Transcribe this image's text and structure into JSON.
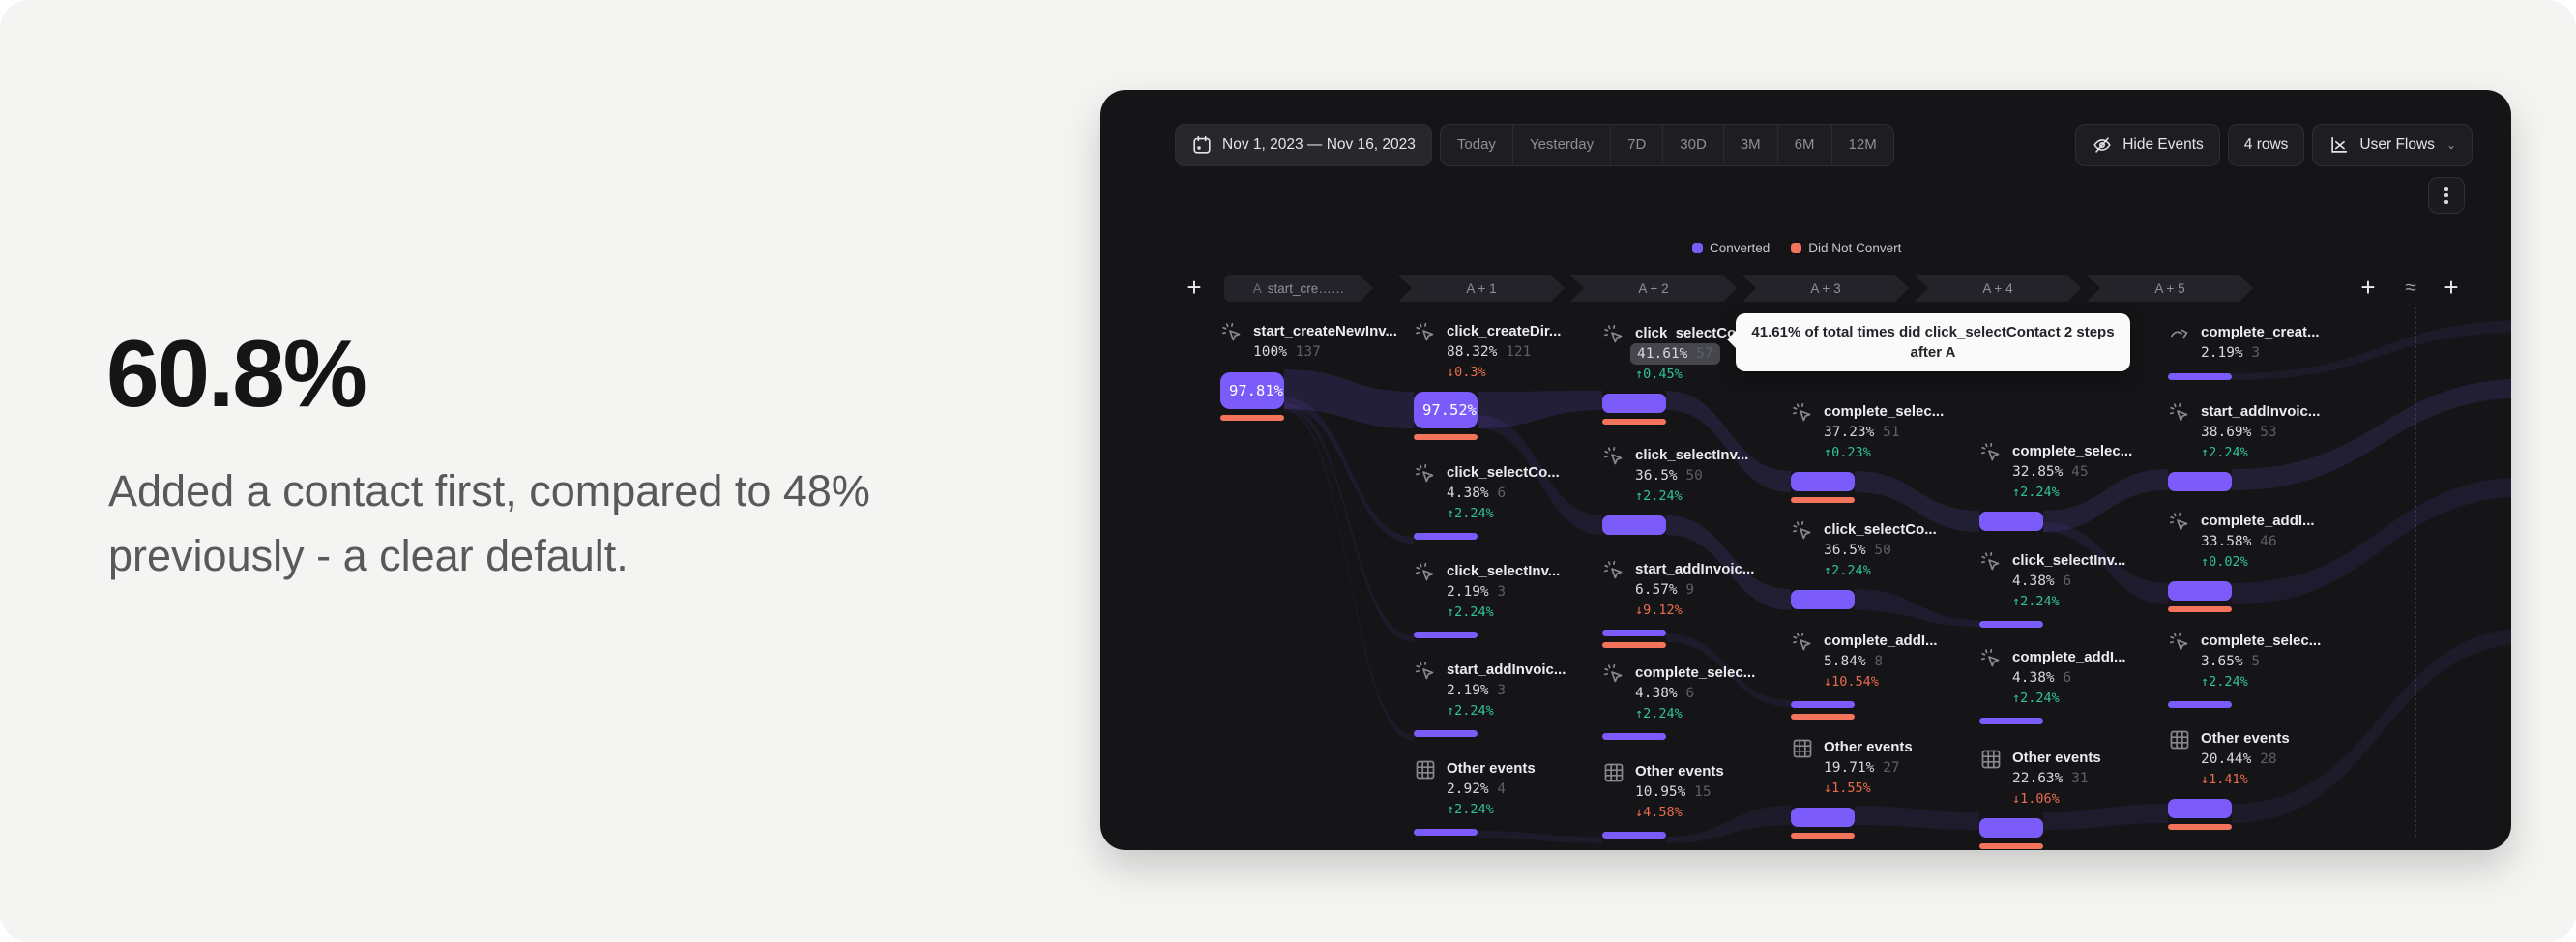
{
  "stat": {
    "headline": "60.8%",
    "subtext_line1": "Added a contact first, compared to 48%",
    "subtext_line2": "previously - a clear default."
  },
  "toolbar": {
    "date_range": "Nov 1, 2023 — Nov 16, 2023",
    "presets": [
      "Today",
      "Yesterday",
      "7D",
      "30D",
      "3M",
      "6M",
      "12M"
    ],
    "hide_events_label": "Hide Events",
    "rows_label": "4 rows",
    "view_label": "User Flows"
  },
  "legend": {
    "converted": "Converted",
    "did_not_convert": "Did Not Convert"
  },
  "colors": {
    "converted": "#7B5BF9",
    "did_not_convert": "#F4735B",
    "delta_up": "#30C29C",
    "delta_down": "#E96B4D",
    "panel_bg": "#151518"
  },
  "tooltip": {
    "text": "41.61% of total times did click_selectContact 2 steps after A"
  },
  "headers": [
    {
      "prefix": "A",
      "label": "start_cre……"
    },
    {
      "label": "A + 1"
    },
    {
      "label": "A + 2"
    },
    {
      "label": "A + 3"
    },
    {
      "label": "A + 4"
    },
    {
      "label": "A + 5"
    }
  ],
  "flows": {
    "columns": [
      {
        "step": "A",
        "nodes": [
          {
            "icon": "cursor-click",
            "name": "start_createNewInv...",
            "pct": "100%",
            "count": "137",
            "purple": "box-label",
            "box_label": "97.81%",
            "orange": true
          }
        ]
      },
      {
        "step": "A + 1",
        "nodes": [
          {
            "icon": "cursor-click",
            "name": "click_createDir...",
            "pct": "88.32%",
            "count": "121",
            "delta": "0.3%",
            "delta_dir": "down",
            "purple": "box-label",
            "box_label": "97.52%",
            "orange": true
          },
          {
            "icon": "cursor-click",
            "name": "click_selectCo...",
            "pct": "4.38%",
            "count": "6",
            "delta": "2.24%",
            "delta_dir": "up",
            "purple": "bar"
          },
          {
            "icon": "cursor-click",
            "name": "click_selectInv...",
            "pct": "2.19%",
            "count": "3",
            "delta": "2.24%",
            "delta_dir": "up",
            "purple": "bar"
          },
          {
            "icon": "cursor-click",
            "name": "start_addInvoic...",
            "pct": "2.19%",
            "count": "3",
            "delta": "2.24%",
            "delta_dir": "up",
            "purple": "bar"
          },
          {
            "icon": "grid",
            "name": "Other events",
            "pct": "2.92%",
            "count": "4",
            "delta": "2.24%",
            "delta_dir": "up",
            "purple": "bar"
          }
        ]
      },
      {
        "step": "A + 2",
        "nodes": [
          {
            "icon": "cursor-click",
            "name": "click_selectCo...",
            "pct": "41.61%",
            "count": "57",
            "delta": "0.45%",
            "delta_dir": "up",
            "purple": "box",
            "orange": true,
            "highlight": true
          },
          {
            "icon": "cursor-click",
            "name": "click_selectInv...",
            "pct": "36.5%",
            "count": "50",
            "delta": "2.24%",
            "delta_dir": "up",
            "purple": "box"
          },
          {
            "icon": "cursor-click",
            "name": "start_addInvoic...",
            "pct": "6.57%",
            "count": "9",
            "delta": "9.12%",
            "delta_dir": "down",
            "purple": "bar",
            "orange": true
          },
          {
            "icon": "cursor-click",
            "name": "complete_selec...",
            "pct": "4.38%",
            "count": "6",
            "delta": "2.24%",
            "delta_dir": "up",
            "purple": "bar"
          },
          {
            "icon": "grid",
            "name": "Other events",
            "pct": "10.95%",
            "count": "15",
            "delta": "4.58%",
            "delta_dir": "down",
            "purple": "bar"
          }
        ]
      },
      {
        "step": "A + 3",
        "nodes": [
          {
            "icon": "cursor-click",
            "name": "complete_selec...",
            "pct": "37.23%",
            "count": "51",
            "delta": "0.23%",
            "delta_dir": "up",
            "purple": "box",
            "orange": true
          },
          {
            "icon": "cursor-click",
            "name": "click_selectCo...",
            "pct": "36.5%",
            "count": "50",
            "delta": "2.24%",
            "delta_dir": "up",
            "purple": "box"
          },
          {
            "icon": "cursor-click",
            "name": "complete_addI...",
            "pct": "5.84%",
            "count": "8",
            "delta": "10.54%",
            "delta_dir": "down",
            "purple": "bar",
            "orange": true
          },
          {
            "icon": "grid",
            "name": "Other events",
            "pct": "19.71%",
            "count": "27",
            "delta": "1.55%",
            "delta_dir": "down",
            "purple": "box",
            "orange": true
          }
        ]
      },
      {
        "step": "A + 4",
        "nodes": [
          {
            "icon": "cursor-click",
            "name": "complete_selec...",
            "pct": "32.85%",
            "count": "45",
            "delta": "2.24%",
            "delta_dir": "up",
            "purple": "box"
          },
          {
            "icon": "cursor-click",
            "name": "click_selectInv...",
            "pct": "4.38%",
            "count": "6",
            "delta": "2.24%",
            "delta_dir": "up",
            "purple": "bar"
          },
          {
            "icon": "cursor-click",
            "name": "complete_addI...",
            "pct": "4.38%",
            "count": "6",
            "delta": "2.24%",
            "delta_dir": "up",
            "purple": "bar"
          },
          {
            "icon": "grid",
            "name": "Other events",
            "pct": "22.63%",
            "count": "31",
            "delta": "1.06%",
            "delta_dir": "down",
            "purple": "box",
            "orange": true
          }
        ]
      },
      {
        "step": "A + 5",
        "nodes": [
          {
            "icon": "redirect",
            "name": "complete_creat...",
            "pct": "2.19%",
            "count": "3",
            "purple": "bar"
          },
          {
            "icon": "cursor-click",
            "name": "start_addInvoic...",
            "pct": "38.69%",
            "count": "53",
            "delta": "2.24%",
            "delta_dir": "up",
            "purple": "box"
          },
          {
            "icon": "cursor-click",
            "name": "complete_addI...",
            "pct": "33.58%",
            "count": "46",
            "delta": "0.02%",
            "delta_dir": "up",
            "purple": "box",
            "orange": true
          },
          {
            "icon": "cursor-click",
            "name": "complete_selec...",
            "pct": "3.65%",
            "count": "5",
            "delta": "2.24%",
            "delta_dir": "up",
            "purple": "bar"
          },
          {
            "icon": "grid",
            "name": "Other events",
            "pct": "20.44%",
            "count": "28",
            "delta": "1.41%",
            "delta_dir": "down",
            "purple": "box",
            "orange": true
          }
        ]
      }
    ]
  }
}
